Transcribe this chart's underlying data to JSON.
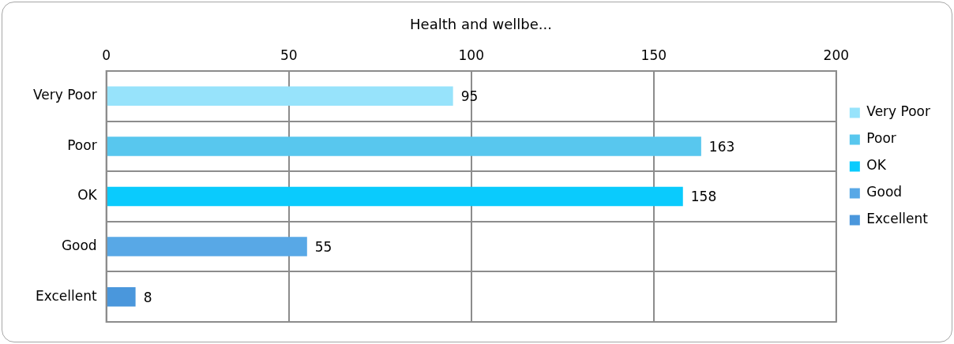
{
  "chart_data": {
    "type": "bar",
    "orientation": "horizontal",
    "title": "Health and wellbe...",
    "categories": [
      "Very Poor",
      "Poor",
      "OK",
      "Good",
      "Excellent"
    ],
    "series": [
      {
        "name": "Very Poor",
        "color": "#97e3fb",
        "values": [
          95,
          null,
          null,
          null,
          null
        ]
      },
      {
        "name": "Poor",
        "color": "#58c7ee",
        "values": [
          null,
          163,
          null,
          null,
          null
        ]
      },
      {
        "name": "OK",
        "color": "#0acbfd",
        "values": [
          null,
          null,
          158,
          null,
          null
        ]
      },
      {
        "name": "Good",
        "color": "#58a8e6",
        "values": [
          null,
          null,
          null,
          55,
          null
        ]
      },
      {
        "name": "Excellent",
        "color": "#4a97dc",
        "values": [
          null,
          null,
          null,
          null,
          8
        ]
      }
    ],
    "xlim": [
      0,
      200
    ],
    "xticks": [
      0,
      50,
      100,
      150,
      200
    ],
    "grid": true,
    "legend": "right",
    "data_labels": true
  }
}
